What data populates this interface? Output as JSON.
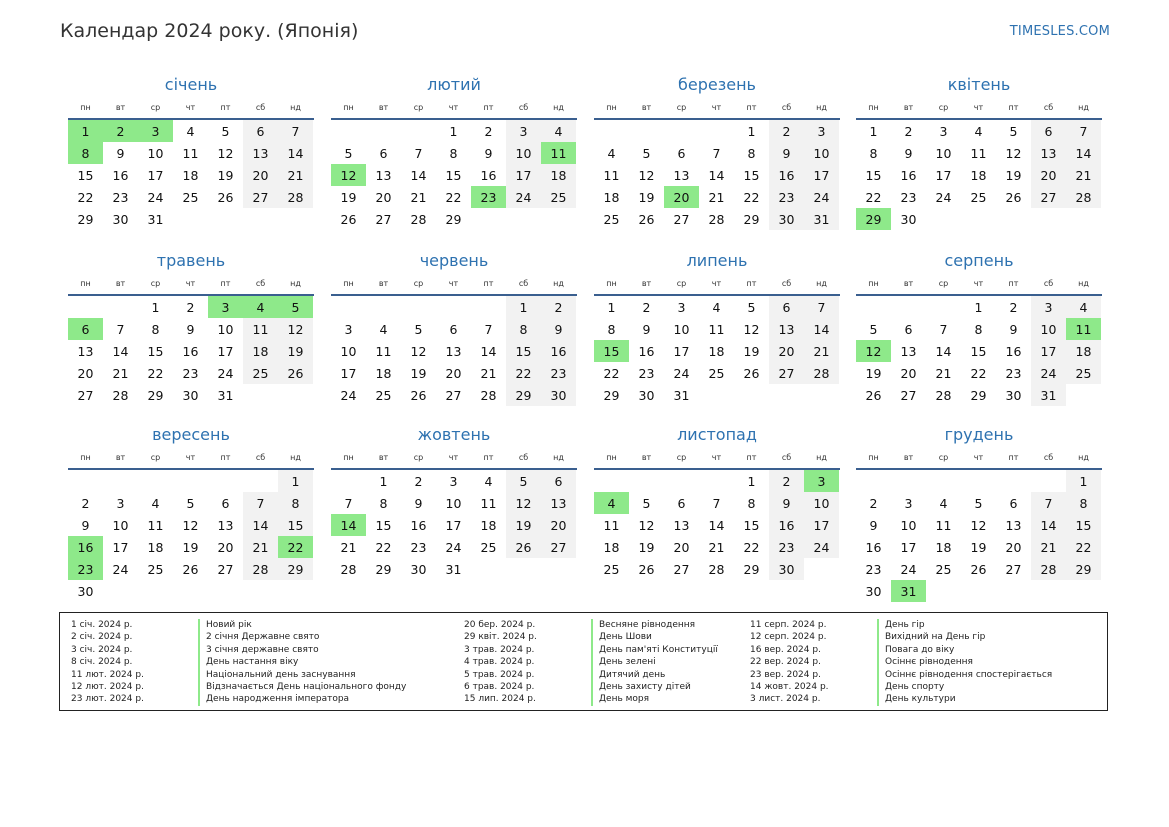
{
  "header": {
    "title": "Календар 2024 року. (Японія)",
    "brand": "TIMESLES.COM"
  },
  "weekdays": [
    "пн",
    "вт",
    "ср",
    "чт",
    "пт",
    "сб",
    "нд"
  ],
  "colors": {
    "holiday": "#8ee98a",
    "weekend": "#f2f2f2",
    "accent": "#2e72b0"
  },
  "months": [
    {
      "name": "січень",
      "offset": 0,
      "days": 31,
      "holidays": [
        1,
        2,
        3,
        8
      ]
    },
    {
      "name": "лютий",
      "offset": 3,
      "days": 29,
      "holidays": [
        11,
        12,
        23
      ]
    },
    {
      "name": "березень",
      "offset": 4,
      "days": 31,
      "holidays": [
        20
      ]
    },
    {
      "name": "квітень",
      "offset": 0,
      "days": 30,
      "holidays": [
        29
      ]
    },
    {
      "name": "травень",
      "offset": 2,
      "days": 31,
      "holidays": [
        3,
        4,
        5,
        6
      ]
    },
    {
      "name": "червень",
      "offset": 5,
      "days": 30,
      "holidays": []
    },
    {
      "name": "липень",
      "offset": 0,
      "days": 31,
      "holidays": [
        15
      ]
    },
    {
      "name": "серпень",
      "offset": 3,
      "days": 31,
      "holidays": [
        11,
        12
      ]
    },
    {
      "name": "вересень",
      "offset": 6,
      "days": 30,
      "holidays": [
        16,
        22,
        23
      ]
    },
    {
      "name": "жовтень",
      "offset": 1,
      "days": 31,
      "holidays": [
        14
      ]
    },
    {
      "name": "листопад",
      "offset": 4,
      "days": 30,
      "holidays": [
        3,
        4
      ]
    },
    {
      "name": "грудень",
      "offset": 6,
      "days": 31,
      "holidays": [
        31
      ]
    }
  ],
  "holiday_list": [
    {
      "date": "1 січ. 2024 р.",
      "name": "Новий рік"
    },
    {
      "date": "2 січ. 2024 р.",
      "name": "2 січня Державне свято"
    },
    {
      "date": "3 січ. 2024 р.",
      "name": "3 січня державне свято"
    },
    {
      "date": "8 січ. 2024 р.",
      "name": "День настання віку"
    },
    {
      "date": "11 лют. 2024 р.",
      "name": "Національний день заснування"
    },
    {
      "date": "12 лют. 2024 р.",
      "name": "Відзначається День національного фонду"
    },
    {
      "date": "23 лют. 2024 р.",
      "name": "День народження імператора"
    },
    {
      "date": "20 бер. 2024 р.",
      "name": "Весняне рівнодення"
    },
    {
      "date": "29 квіт. 2024 р.",
      "name": "День Шови"
    },
    {
      "date": "3 трав. 2024 р.",
      "name": "День пам'яті Конституції"
    },
    {
      "date": "4 трав. 2024 р.",
      "name": "День зелені"
    },
    {
      "date": "5 трав. 2024 р.",
      "name": "Дитячий день"
    },
    {
      "date": "6 трав. 2024 р.",
      "name": "День захисту дітей"
    },
    {
      "date": "15 лип. 2024 р.",
      "name": "День моря"
    },
    {
      "date": "11 серп. 2024 р.",
      "name": "День гір"
    },
    {
      "date": "12 серп. 2024 р.",
      "name": "Вихідний на День гір"
    },
    {
      "date": "16 вер. 2024 р.",
      "name": "Повага до віку"
    },
    {
      "date": "22 вер. 2024 р.",
      "name": "Осіннє рівнодення"
    },
    {
      "date": "23 вер. 2024 р.",
      "name": "Осіннє рівнодення спостерігається"
    },
    {
      "date": "14 жовт. 2024 р.",
      "name": "День спорту"
    },
    {
      "date": "3 лист. 2024 р.",
      "name": "День культури"
    }
  ]
}
